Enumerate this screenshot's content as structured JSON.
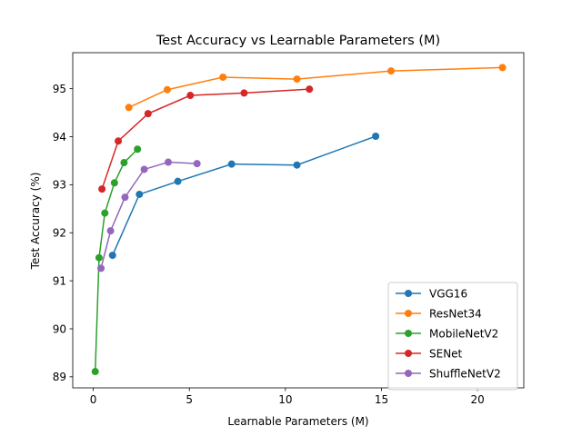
{
  "chart_data": {
    "type": "line",
    "title": "Test Accuracy vs Learnable Parameters (M)",
    "xlabel": "Learnable Parameters (M)",
    "ylabel": "Test Accuracy (%)",
    "xlim": [
      -1.07,
      22.41
    ],
    "ylim": [
      88.77,
      95.75
    ],
    "xticks": [
      0,
      5,
      10,
      15,
      20
    ],
    "yticks": [
      89,
      90,
      91,
      92,
      93,
      94,
      95
    ],
    "grid": false,
    "legend_position": "lower-right",
    "marker": "circle",
    "series": [
      {
        "name": "VGG16",
        "color": "#1f77b4",
        "points": [
          [
            1.0,
            91.53
          ],
          [
            2.4,
            92.8
          ],
          [
            4.4,
            93.07
          ],
          [
            7.2,
            93.43
          ],
          [
            10.6,
            93.41
          ],
          [
            14.7,
            94.01
          ]
        ]
      },
      {
        "name": "ResNet34",
        "color": "#ff7f0e",
        "points": [
          [
            1.85,
            94.61
          ],
          [
            3.85,
            94.98
          ],
          [
            6.75,
            95.24
          ],
          [
            10.6,
            95.2
          ],
          [
            15.5,
            95.37
          ],
          [
            21.3,
            95.44
          ]
        ]
      },
      {
        "name": "MobileNetV2",
        "color": "#2ca02c",
        "points": [
          [
            0.1,
            89.11
          ],
          [
            0.3,
            91.48
          ],
          [
            0.6,
            92.41
          ],
          [
            1.1,
            93.04
          ],
          [
            1.6,
            93.46
          ],
          [
            2.3,
            93.74
          ]
        ]
      },
      {
        "name": "SENet",
        "color": "#d62728",
        "points": [
          [
            0.45,
            92.91
          ],
          [
            1.3,
            93.91
          ],
          [
            2.85,
            94.48
          ],
          [
            5.05,
            94.86
          ],
          [
            7.85,
            94.91
          ],
          [
            11.25,
            94.99
          ]
        ]
      },
      {
        "name": "ShuffleNetV2",
        "color": "#9467bd",
        "points": [
          [
            0.4,
            91.26
          ],
          [
            0.9,
            92.04
          ],
          [
            1.65,
            92.74
          ],
          [
            2.65,
            93.32
          ],
          [
            3.9,
            93.47
          ],
          [
            5.4,
            93.44
          ]
        ]
      }
    ]
  }
}
